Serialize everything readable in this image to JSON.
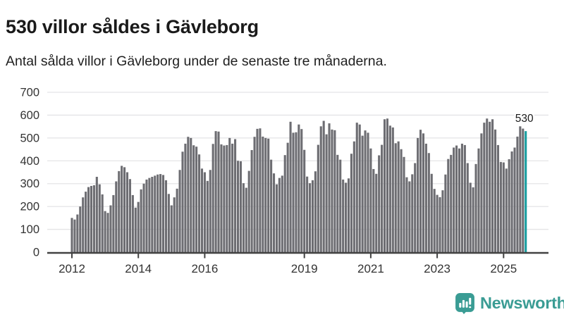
{
  "header": {
    "title": "530 villor såldes i Gävleborg",
    "subtitle": "Antal sålda villor i Gävleborg under de senaste tre månaderna."
  },
  "chart_data": {
    "type": "bar",
    "title": "530 villor såldes i Gävleborg",
    "subtitle": "Antal sålda villor i Gävleborg under de senaste tre månaderna.",
    "xlabel": "",
    "ylabel": "",
    "ylim": [
      0,
      700
    ],
    "grid": true,
    "legend": "none",
    "yticks": [
      0,
      100,
      200,
      300,
      400,
      500,
      600,
      700
    ],
    "xticks": [
      {
        "label": "2012",
        "month": 0
      },
      {
        "label": "2014",
        "month": 24
      },
      {
        "label": "2016",
        "month": 48
      },
      {
        "label": "2019",
        "month": 84
      },
      {
        "label": "2021",
        "month": 108
      },
      {
        "label": "2023",
        "month": 132
      },
      {
        "label": "2025",
        "month": 156
      }
    ],
    "x_start_label": "2012",
    "x_unit": "month",
    "values": [
      150,
      143,
      165,
      200,
      240,
      265,
      285,
      290,
      293,
      330,
      297,
      253,
      180,
      172,
      205,
      250,
      310,
      355,
      378,
      372,
      350,
      320,
      250,
      195,
      220,
      275,
      300,
      318,
      325,
      330,
      335,
      340,
      342,
      338,
      315,
      255,
      205,
      240,
      278,
      360,
      440,
      475,
      505,
      500,
      468,
      462,
      428,
      366,
      350,
      312,
      360,
      474,
      530,
      528,
      472,
      467,
      469,
      500,
      475,
      495,
      400,
      398,
      302,
      282,
      356,
      447,
      505,
      540,
      542,
      506,
      500,
      497,
      405,
      345,
      297,
      325,
      335,
      425,
      479,
      571,
      523,
      525,
      559,
      539,
      448,
      331,
      302,
      315,
      354,
      470,
      551,
      575,
      516,
      564,
      537,
      534,
      426,
      405,
      318,
      304,
      323,
      431,
      485,
      567,
      559,
      510,
      533,
      523,
      454,
      364,
      343,
      424,
      470,
      582,
      585,
      554,
      546,
      477,
      485,
      451,
      417,
      328,
      310,
      341,
      390,
      500,
      536,
      520,
      475,
      434,
      343,
      277,
      251,
      241,
      271,
      340,
      408,
      426,
      458,
      467,
      454,
      475,
      469,
      390,
      304,
      284,
      386,
      454,
      520,
      567,
      585,
      571,
      582,
      537,
      469,
      395,
      393,
      366,
      407,
      441,
      458,
      506,
      551,
      541,
      530
    ],
    "highlight": {
      "index": 164,
      "value": 530,
      "label": "530"
    },
    "colors": {
      "bar": "#6d6d72",
      "highlight": "#189ea0",
      "grid": "#e4e4e6",
      "axis": "#424242",
      "axis_text": "#333333",
      "annotation_text": "#1a1a1a"
    }
  },
  "branding": {
    "logo_text": "Newsworthy",
    "logo_icon": "newsworthy-bars-speech-bubble",
    "logo_color": "#3a9c94"
  }
}
